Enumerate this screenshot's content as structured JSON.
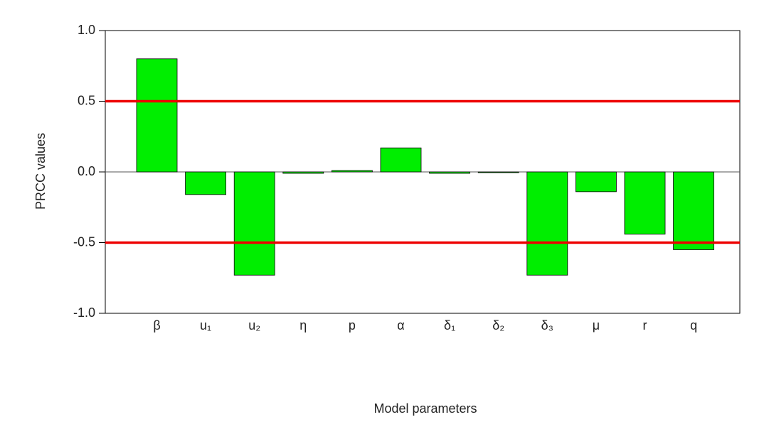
{
  "chart_data": {
    "type": "bar",
    "x_label": "Model parameters",
    "y_label": "PRCC values",
    "categories": [
      "β",
      "u₁",
      "u₂",
      "η",
      "p",
      "α",
      "δ₁",
      "δ₂",
      "δ₃",
      "μ",
      "r",
      "q"
    ],
    "values": [
      0.8,
      -0.16,
      -0.73,
      -0.01,
      0.01,
      0.17,
      -0.01,
      -0.005,
      -0.73,
      -0.14,
      -0.44,
      -0.55
    ],
    "color": "#00ee00",
    "ylim": [
      -1,
      1
    ],
    "yticks": [
      {
        "value": -1,
        "label": "-1.0"
      },
      {
        "value": -0.5,
        "label": "-0.5"
      },
      {
        "value": 0,
        "label": "0.0"
      },
      {
        "value": 0.5,
        "label": "0.5"
      },
      {
        "value": 1,
        "label": "1.0"
      }
    ],
    "hlines": [
      0.5,
      -0.5
    ],
    "hline_color": "#ee0000"
  }
}
